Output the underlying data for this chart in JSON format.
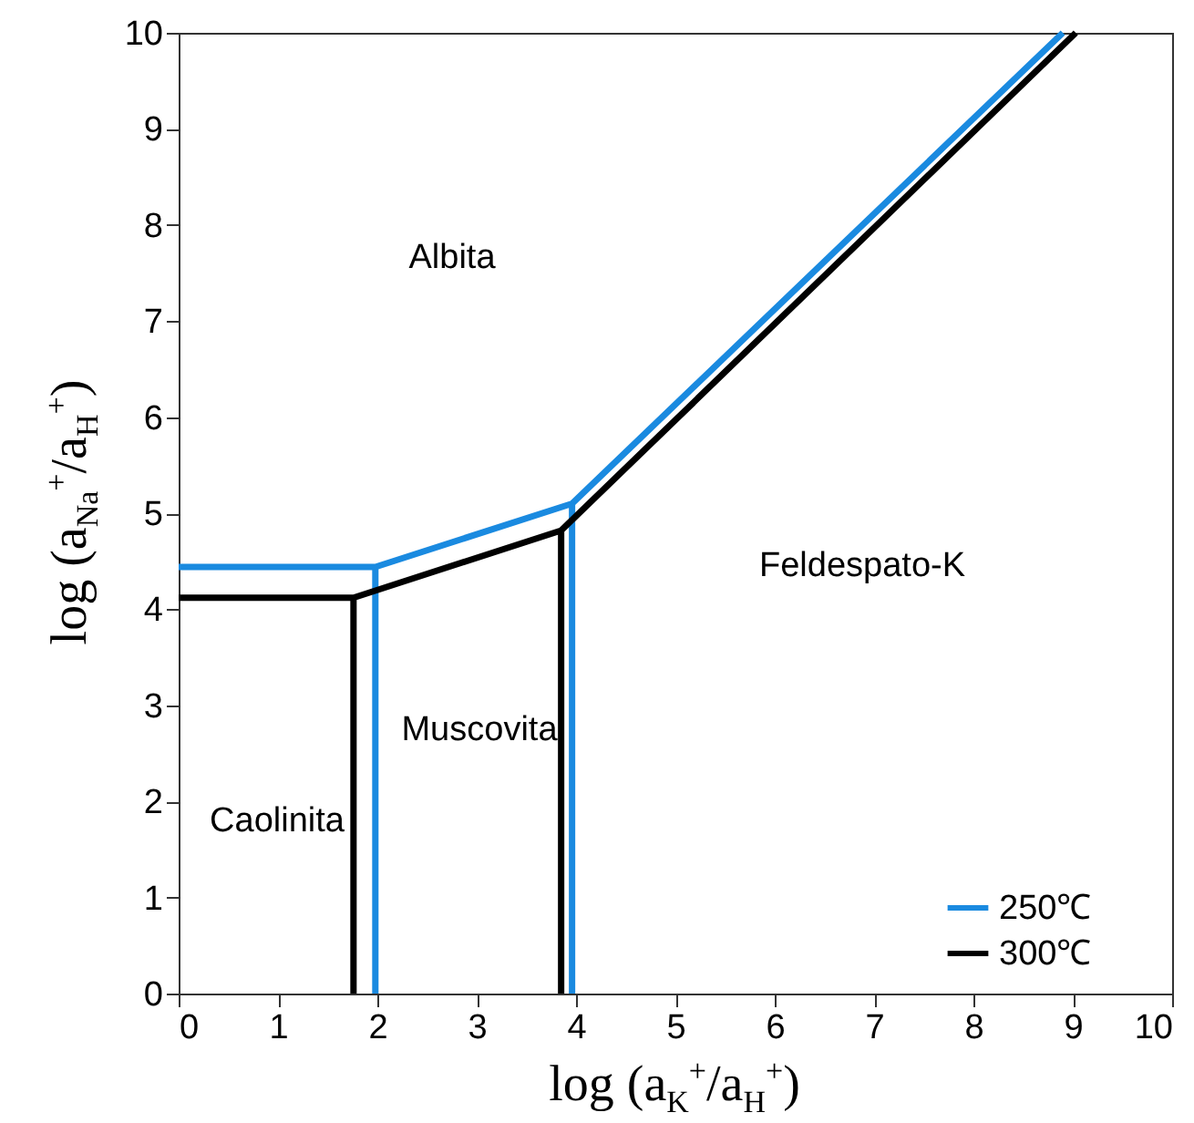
{
  "chart_data": {
    "type": "line",
    "xlabel": "log (a$_{K}$$^{+}$/a$_{H}$$^{+}$)",
    "ylabel": "log (a$_{Na}$$^{+}$/a$_{H}$$^{+}$)",
    "series": [
      {
        "name": "250℃",
        "color": "#1a8ae0",
        "x": [
          0,
          1.98,
          3.96,
          8.9,
          null,
          1.98,
          1.98,
          null,
          3.96,
          3.96
        ],
        "values": [
          4.44,
          4.44,
          5.1,
          10,
          null,
          4.44,
          0,
          null,
          5.1,
          0
        ]
      },
      {
        "name": "300℃",
        "color": "#000000",
        "x": [
          0,
          1.76,
          3.85,
          9.03,
          null,
          1.76,
          1.76,
          null,
          3.85,
          3.85
        ],
        "values": [
          4.12,
          4.12,
          4.82,
          10,
          null,
          4.12,
          0,
          null,
          4.82,
          0
        ]
      }
    ],
    "annotations": [
      "Albita",
      "Feldespato-K",
      "Muscovita",
      "Caolinita"
    ],
    "xlim": [
      0,
      10
    ],
    "ylim": [
      0,
      10
    ],
    "xticks": [
      0,
      1,
      2,
      3,
      4,
      5,
      6,
      7,
      8,
      9,
      10
    ],
    "yticks": [
      0,
      1,
      2,
      3,
      4,
      5,
      6,
      7,
      8,
      9,
      10
    ],
    "grid": false,
    "legend": "bottom right"
  }
}
